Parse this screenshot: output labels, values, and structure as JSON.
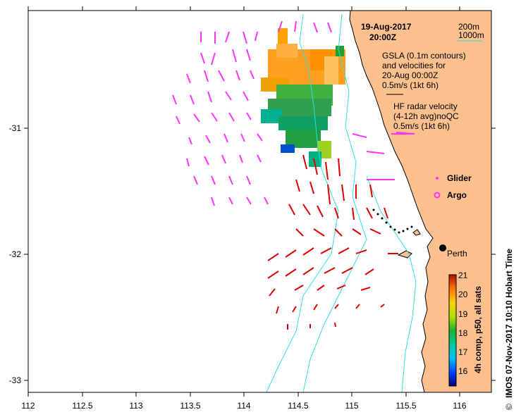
{
  "map": {
    "date_line": "19-Aug-2017",
    "time_line": "20:00Z",
    "legend_200m": "200m",
    "legend_1000m": "1000m",
    "gsla_text": [
      "GSLA (0.1m contours)",
      "and velocities for",
      "20-Aug 00:00Z",
      "0.5m/s (1kt 6h)"
    ],
    "hf_text": [
      "HF radar velocity",
      "(4-12h avg)noQC",
      "0.5m/s (1kt 6h)"
    ],
    "glider_label": "Glider",
    "argo_label": "Argo",
    "city_label": "Perth",
    "credit": "IMOS 07-Nov-2017 10:10 Hobart Time",
    "copyright_symbol": "©",
    "colorbar_label": "4h comp, p50, all sats",
    "colorbar_ticks": [
      "21",
      "20",
      "19",
      "18",
      "17",
      "16"
    ],
    "x_ticks": [
      "112",
      "112.5",
      "113",
      "113.5",
      "114",
      "114.5",
      "115",
      "115.5",
      "116"
    ],
    "y_ticks": [
      "-31",
      "-32",
      "-33"
    ],
    "colors": {
      "land": "#fbc08e",
      "hf_vector": "#ff33ff",
      "gsla_vector": "#dd0000",
      "contour": "#33dddd",
      "glider": "#ff33ff",
      "argo": "#ff33ff"
    }
  }
}
